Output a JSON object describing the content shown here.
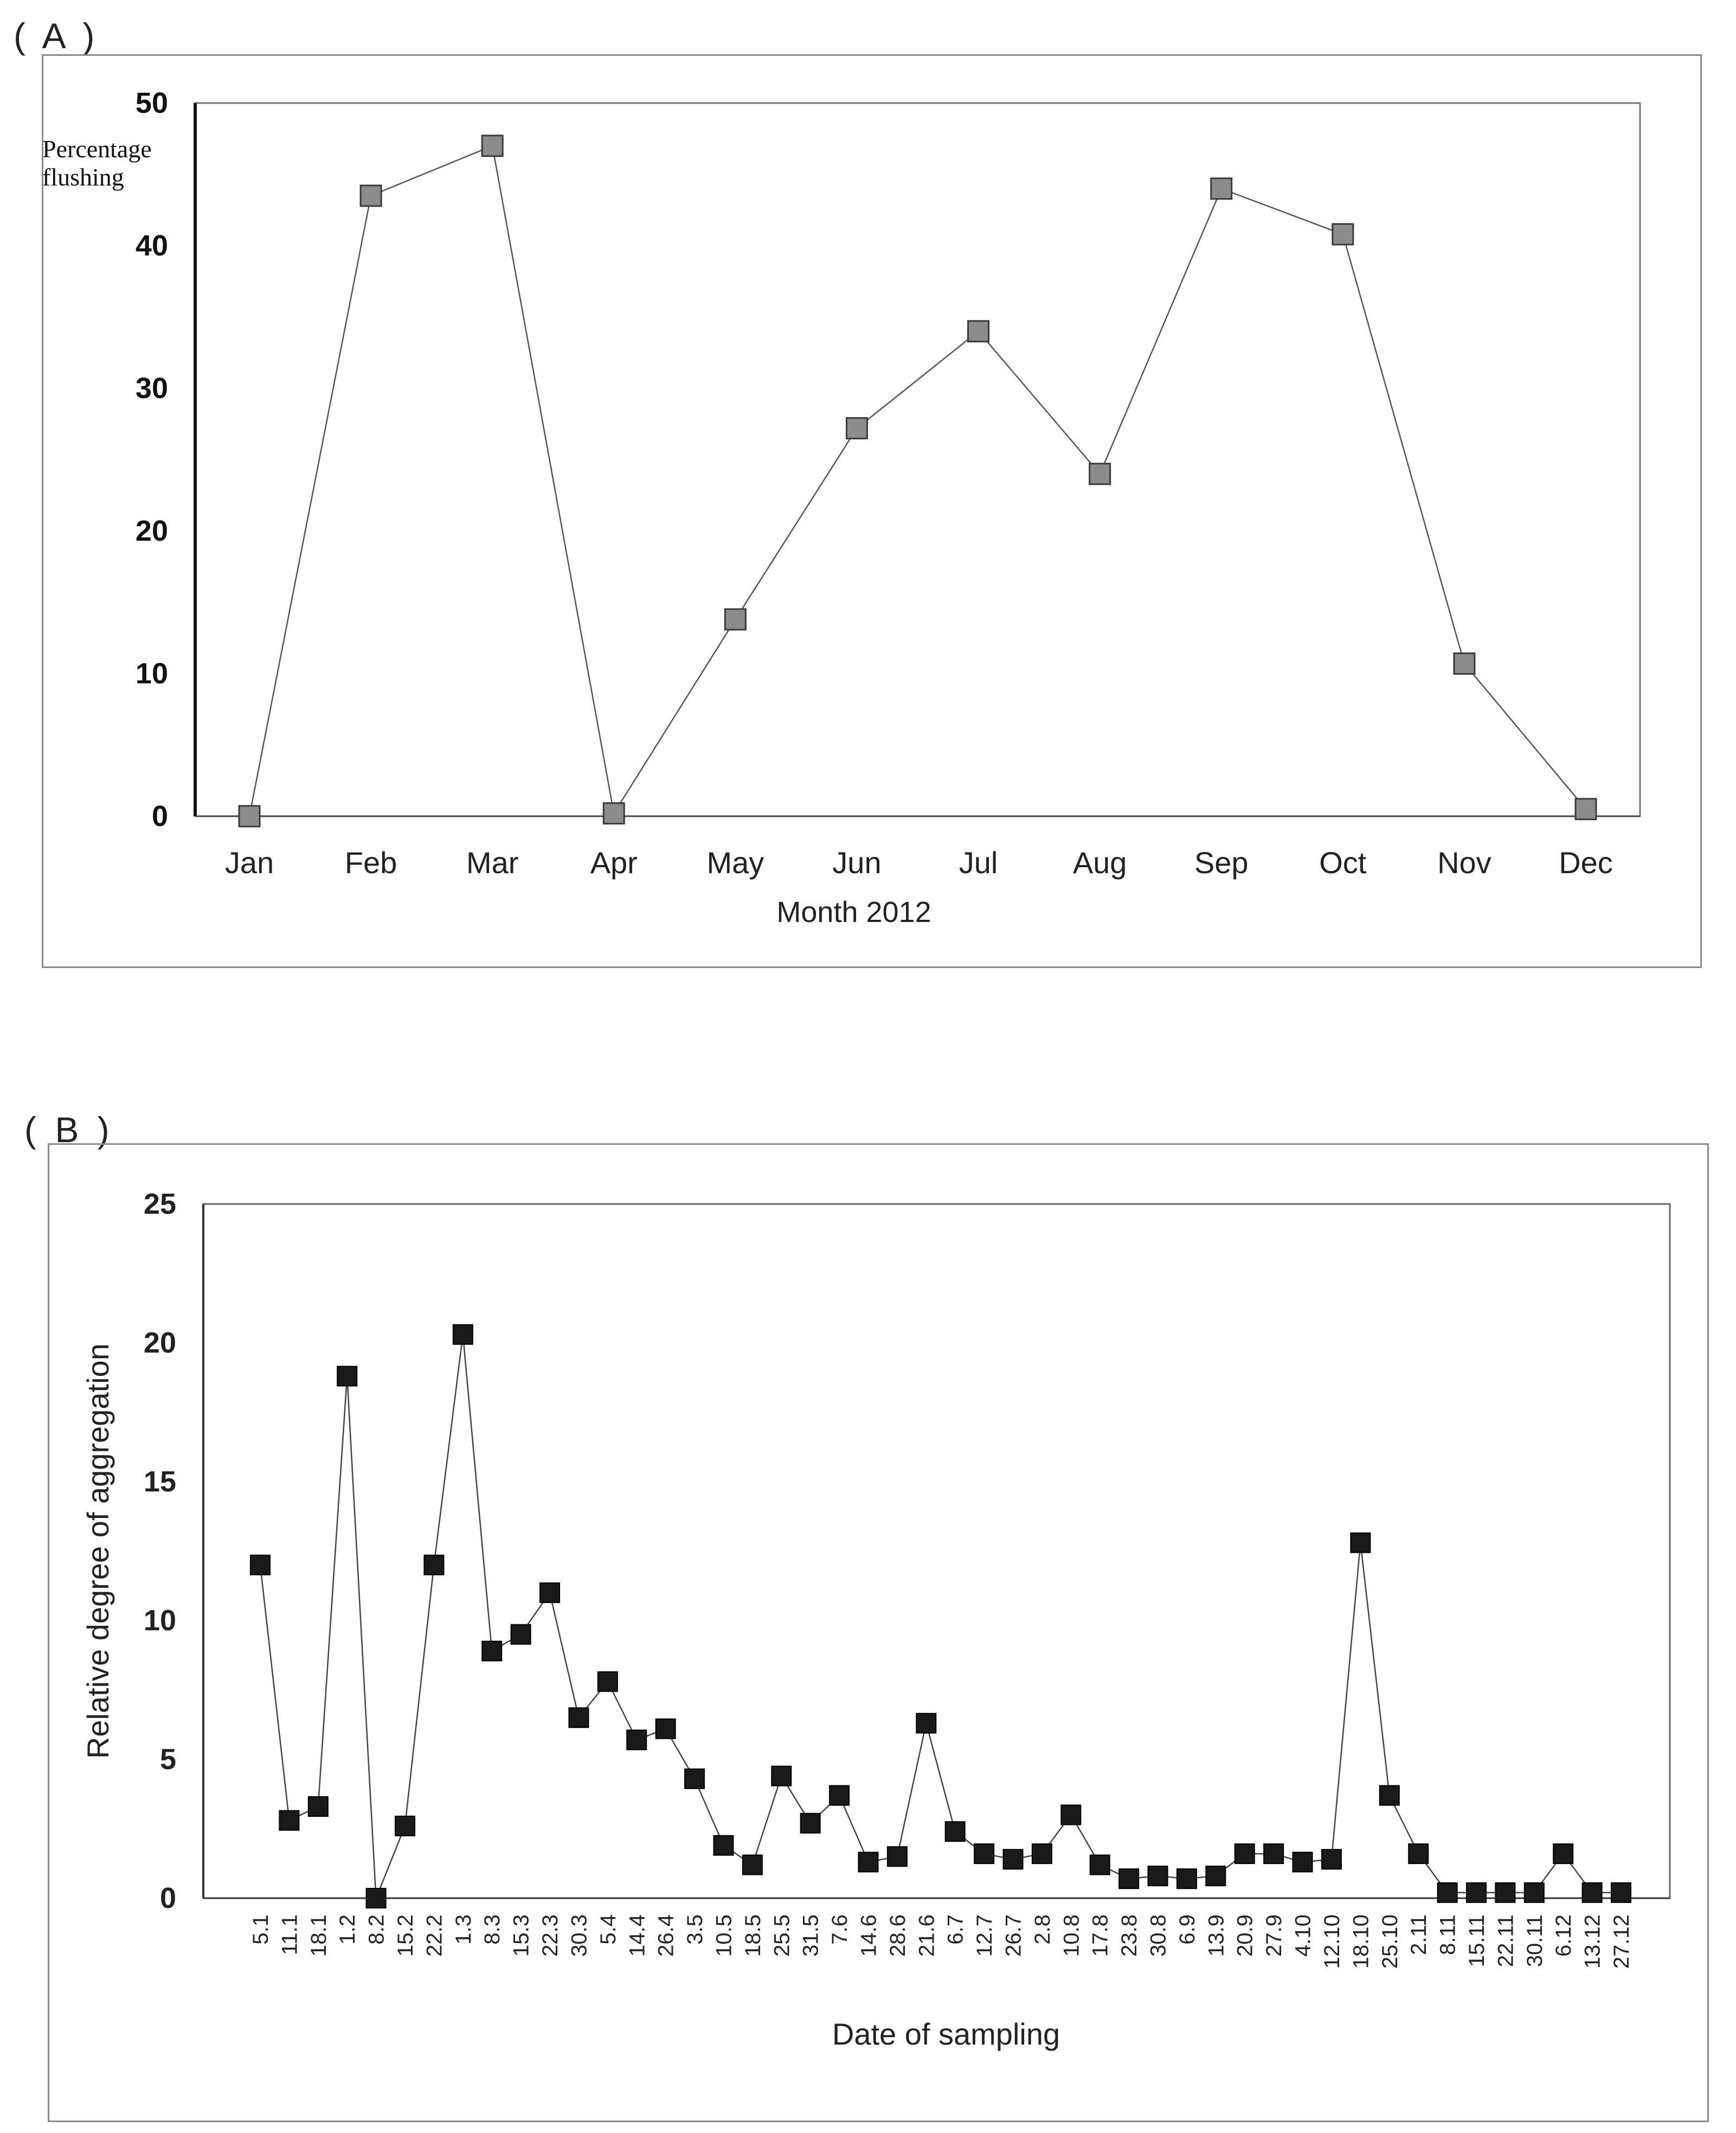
{
  "panels": {
    "a_label": "( A )",
    "b_label": "( B )"
  },
  "chart_data": [
    {
      "id": "A",
      "type": "line",
      "title": "",
      "xlabel": "Month 2012",
      "ylabel": "Percentage flushing",
      "ylabel_lines": [
        "Percentage",
        "flushing"
      ],
      "ylim": [
        0,
        50
      ],
      "yticks": [
        0,
        10,
        20,
        30,
        40,
        50
      ],
      "categories": [
        "Jan",
        "Feb",
        "Mar",
        "Apr",
        "May",
        "Jun",
        "Jul",
        "Aug",
        "Sep",
        "Oct",
        "Nov",
        "Dec"
      ],
      "values": [
        0,
        43.5,
        47,
        0.2,
        13.8,
        27.2,
        34,
        24,
        44,
        40.8,
        10.7,
        0.5
      ],
      "marker": "square",
      "marker_color": "#8c8c8c",
      "line_color": "#555555",
      "grid": false,
      "legend": "none"
    },
    {
      "id": "B",
      "type": "line",
      "title": "",
      "xlabel": "Date of sampling",
      "ylabel": "Relative degree of aggregation",
      "ylim": [
        0,
        25
      ],
      "yticks": [
        0,
        5,
        10,
        15,
        20,
        25
      ],
      "categories": [
        "5.1",
        "11.1",
        "18.1",
        "1.2",
        "8.2",
        "15.2",
        "22.2",
        "1.3",
        "8.3",
        "15.3",
        "22.3",
        "30.3",
        "5.4",
        "14.4",
        "26.4",
        "3.5",
        "10.5",
        "18.5",
        "25.5",
        "31.5",
        "7.6",
        "14.6",
        "28.6",
        "21.6",
        "6.7",
        "12.7",
        "26.7",
        "2.8",
        "10.8",
        "17.8",
        "23.8",
        "30.8",
        "6.9",
        "13.9",
        "20.9",
        "27.9",
        "4.10",
        "12.10",
        "18.10",
        "25.10",
        "2.11",
        "8.11",
        "15.11",
        "22.11",
        "30.11",
        "6.12",
        "13.12",
        "27.12"
      ],
      "values": [
        12,
        2.8,
        3.3,
        18.8,
        0,
        2.6,
        12,
        20.3,
        8.9,
        9.5,
        11,
        6.5,
        7.8,
        5.7,
        6.1,
        4.3,
        1.9,
        1.2,
        4.4,
        2.7,
        3.7,
        1.3,
        1.5,
        6.3,
        2.4,
        1.6,
        1.4,
        1.6,
        3.0,
        1.2,
        0.7,
        0.8,
        0.7,
        0.8,
        1.6,
        1.6,
        1.3,
        1.4,
        12.8,
        3.7,
        1.6,
        0.2,
        0.2,
        0.2,
        0.2,
        1.6,
        0.2,
        0.2
      ],
      "marker": "square",
      "marker_color": "#1a1a1a",
      "line_color": "#444444",
      "grid": false,
      "legend": "none"
    }
  ]
}
